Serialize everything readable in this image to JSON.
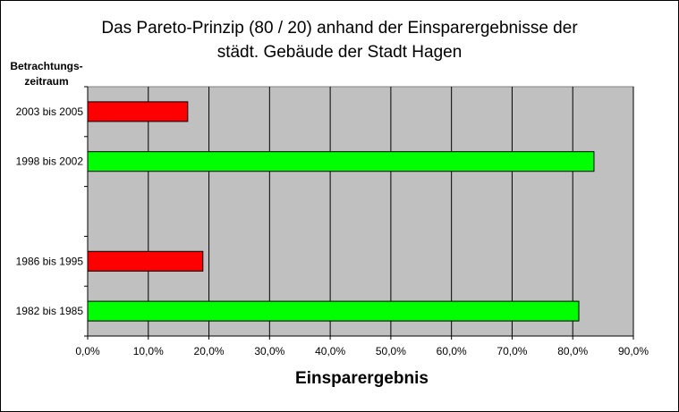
{
  "chart_data": {
    "type": "bar",
    "orientation": "horizontal",
    "title_lines": [
      "Das Pareto-Prinzip (80 / 20) anhand der Einsparergebnisse der",
      "städt. Gebäude der Stadt Hagen"
    ],
    "ylabel_lines": [
      "Betrachtungs-",
      "zeitraum"
    ],
    "xlabel": "Einsparergebnis",
    "categories": [
      "2003 bis 2005",
      "1998 bis 2002",
      "",
      "1986 bis 1995",
      "1982 bis 1985"
    ],
    "values": [
      16.5,
      83.5,
      null,
      19.0,
      81.0
    ],
    "bar_colors": [
      "#ff0000",
      "#00ff00",
      null,
      "#ff0000",
      "#00ff00"
    ],
    "xlim": [
      0,
      90
    ],
    "xticks": [
      "0,0%",
      "10,0%",
      "20,0%",
      "30,0%",
      "40,0%",
      "50,0%",
      "60,0%",
      "70,0%",
      "80,0%",
      "90,0%"
    ],
    "grid": "vertical",
    "plot_background": "#c0c0c0",
    "legend": "none"
  }
}
